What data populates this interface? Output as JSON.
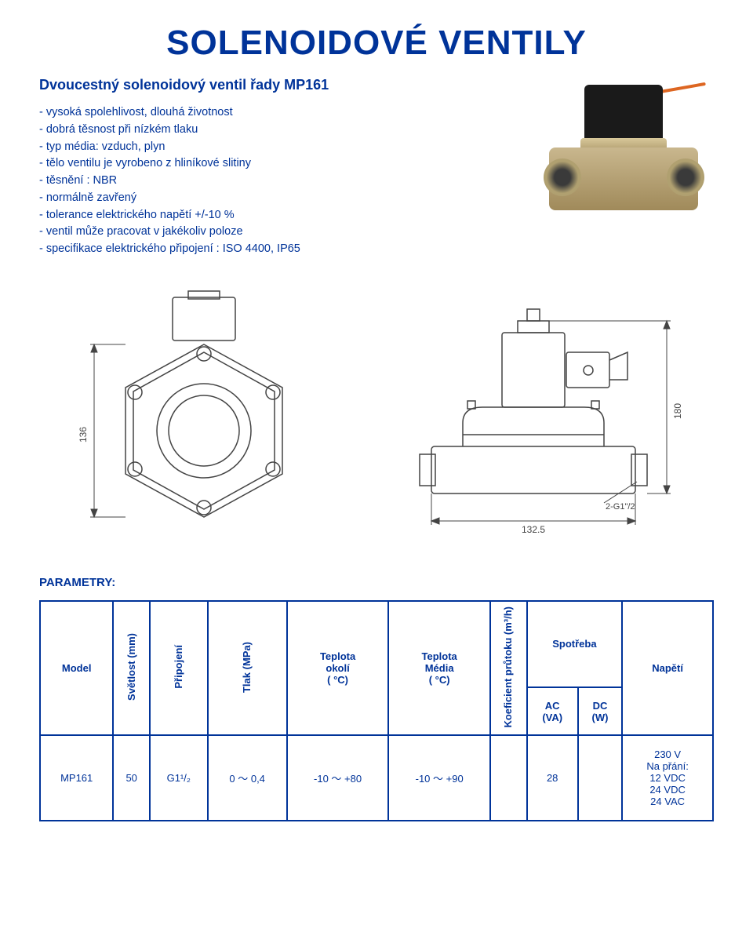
{
  "title": "SOLENOIDOVÉ VENTILY",
  "subtitle": "Dvoucestný solenoidový ventil řady MP161",
  "features": [
    "- vysoká spolehlivost, dlouhá životnost",
    "- dobrá těsnost při nízkém tlaku",
    "- typ média: vzduch, plyn",
    "- tělo ventilu  je vyrobeno z hliníkové slitiny",
    "- těsnění : NBR",
    "- normálně zavřený",
    "- tolerance elektrického napětí +/-10 %",
    "- ventil může pracovat v jakékoliv poloze",
    "- specifikace elektrického připojení : ISO 4400, IP65"
  ],
  "drawing": {
    "dim_left": "136",
    "dim_right_top": "180",
    "dim_right_bottom": "132.5",
    "port_label": "2-G1\"/2"
  },
  "params_label": "PARAMETRY:",
  "table": {
    "head": {
      "model": "Model",
      "svetlost": "Světlost\n(mm)",
      "pripojeni": "Připojení",
      "tlak": "Tlak\n(MPa)",
      "tokoli": "Teplota\nokolí\n( °C)",
      "tmedia": "Teplota\nMédia\n( °C)",
      "koef": "Koeficient\nprůtoku\n(m³/h)",
      "spotreba": "Spotřeba",
      "ac": "AC\n(VA)",
      "dc": "DC\n(W)",
      "napeti": "Napětí"
    },
    "row": {
      "model": "MP161",
      "svetlost": "50",
      "pripojeni": "G1¹/₂",
      "tlak": "0 ～ 0,4",
      "tokoli": "-10 ～ +80",
      "tmedia": "-10 ～ +90",
      "koef": "",
      "ac": "28",
      "dc": "",
      "napeti": "230 V\nNa přání:\n12 VDC\n24 VDC\n24 VAC"
    }
  },
  "colors": {
    "primary": "#003399",
    "bg": "#ffffff"
  }
}
